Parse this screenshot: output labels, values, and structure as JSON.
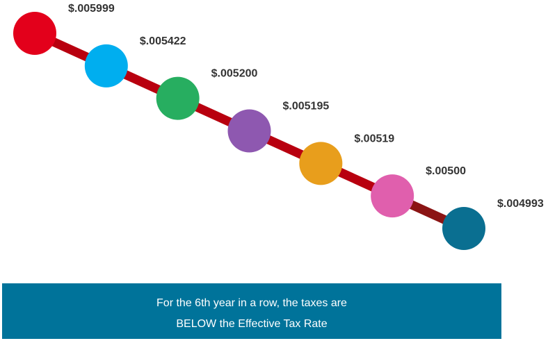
{
  "chart_data": {
    "type": "line",
    "categories": [
      "",
      "",
      "",
      "",
      "",
      "",
      ""
    ],
    "values": [
      0.005999,
      0.005422,
      0.0052,
      0.005195,
      0.00519,
      0.005,
      0.004993
    ],
    "data_labels": [
      "$.005999",
      "$.005422",
      "$.005200",
      "$.005195",
      "$.00519",
      "$.00500",
      "$.004993"
    ],
    "point_colors": [
      "#e3001b",
      "#00aeef",
      "#27ae60",
      "#8e58b0",
      "#e89e1c",
      "#e05fad",
      "#0a6f91"
    ],
    "line_color": "#b8000f",
    "title": "",
    "xlabel": "",
    "ylabel": "",
    "grid": false,
    "legend": "none"
  },
  "banner": {
    "line1": "For the 6th year in a row, the taxes are",
    "line2": "BELOW the Effective Tax Rate",
    "background": "#00739a"
  }
}
